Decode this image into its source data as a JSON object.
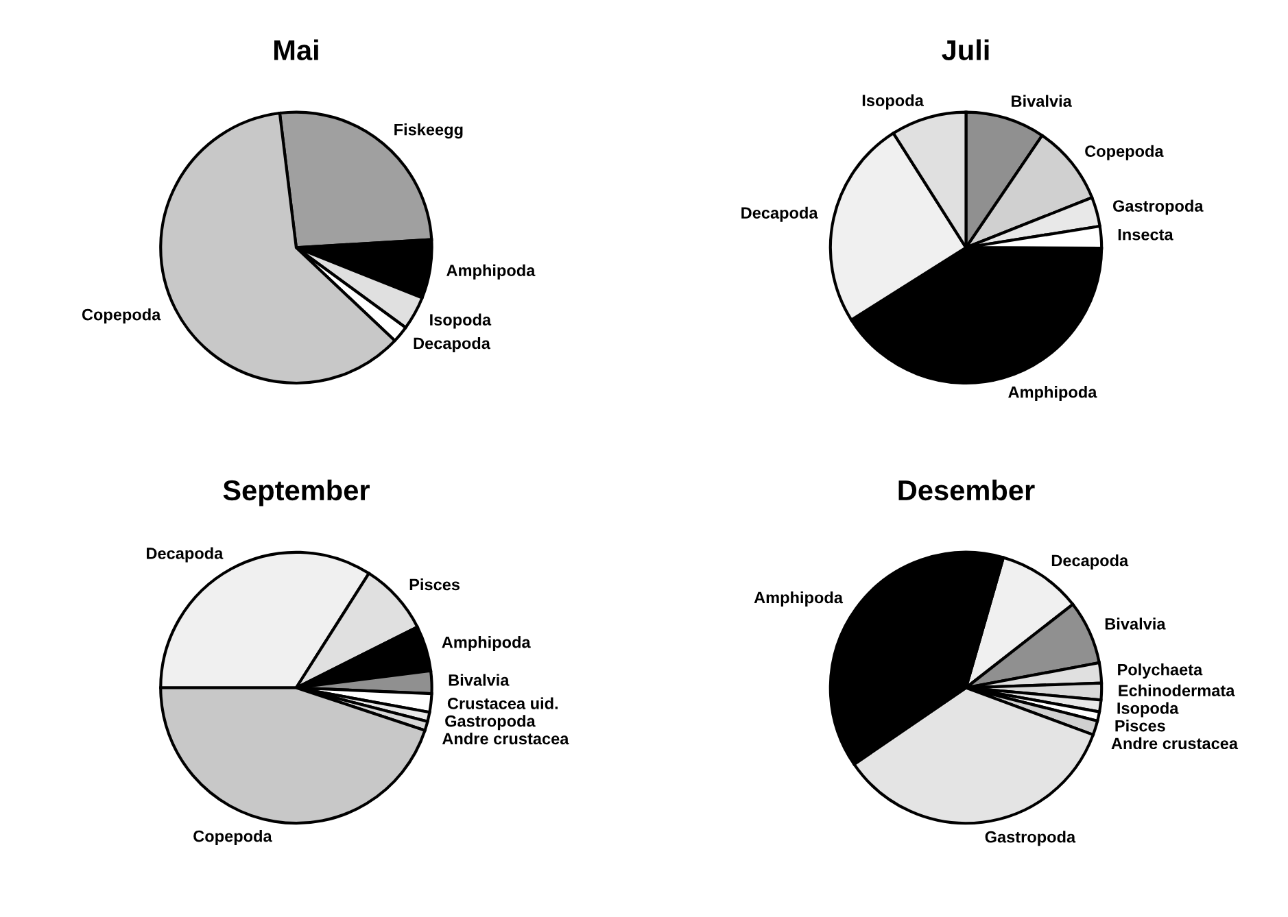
{
  "chart_data": [
    {
      "type": "pie",
      "title": "Mai",
      "categories": [
        "Fiskeegg",
        "Amphipoda",
        "Isopoda",
        "Decapoda",
        "Copepoda"
      ],
      "values": [
        26,
        7,
        4,
        2,
        61
      ],
      "colors": [
        "#a0a0a0",
        "#000000",
        "#e0e0e0",
        "#ffffff",
        "#c8c8c8"
      ]
    },
    {
      "type": "pie",
      "title": "Juli",
      "categories": [
        "Bivalvia",
        "Copepoda",
        "Gastropoda",
        "Insecta",
        "Amphipoda",
        "Decapoda",
        "Isopoda"
      ],
      "values": [
        9.5,
        9.5,
        3.5,
        2.6,
        41,
        25,
        9
      ],
      "colors": [
        "#909090",
        "#d0d0d0",
        "#e8e8e8",
        "#ffffff",
        "#000000",
        "#f0f0f0",
        "#e0e0e0"
      ]
    },
    {
      "type": "pie",
      "title": "September",
      "categories": [
        "Decapoda",
        "Pisces",
        "Amphipoda",
        "Bivalvia",
        "Crustacea uid.",
        "Gastropoda",
        "Andre crustacea",
        "Copepoda"
      ],
      "values": [
        34,
        8.6,
        5.4,
        2.7,
        2.2,
        1.1,
        1.1,
        44.9
      ],
      "colors": [
        "#f0f0f0",
        "#e0e0e0",
        "#000000",
        "#909090",
        "#ffffff",
        "#e8e8e8",
        "#d8d8d8",
        "#c8c8c8"
      ]
    },
    {
      "type": "pie",
      "title": "Desember",
      "categories": [
        "Decapoda",
        "Bivalvia",
        "Polychaeta",
        "Echinodermata",
        "Isopoda",
        "Pisces",
        "Andre crustacea",
        "Gastropoda",
        "Amphipoda"
      ],
      "values": [
        10,
        7.6,
        2.4,
        2,
        1.4,
        1.1,
        1.7,
        34.8,
        39
      ],
      "colors": [
        "#f0f0f0",
        "#909090",
        "#e0e0e0",
        "#d8d8d8",
        "#e8e8e8",
        "#ffffff",
        "#d0d0d0",
        "#e4e4e4",
        "#000000"
      ]
    }
  ]
}
